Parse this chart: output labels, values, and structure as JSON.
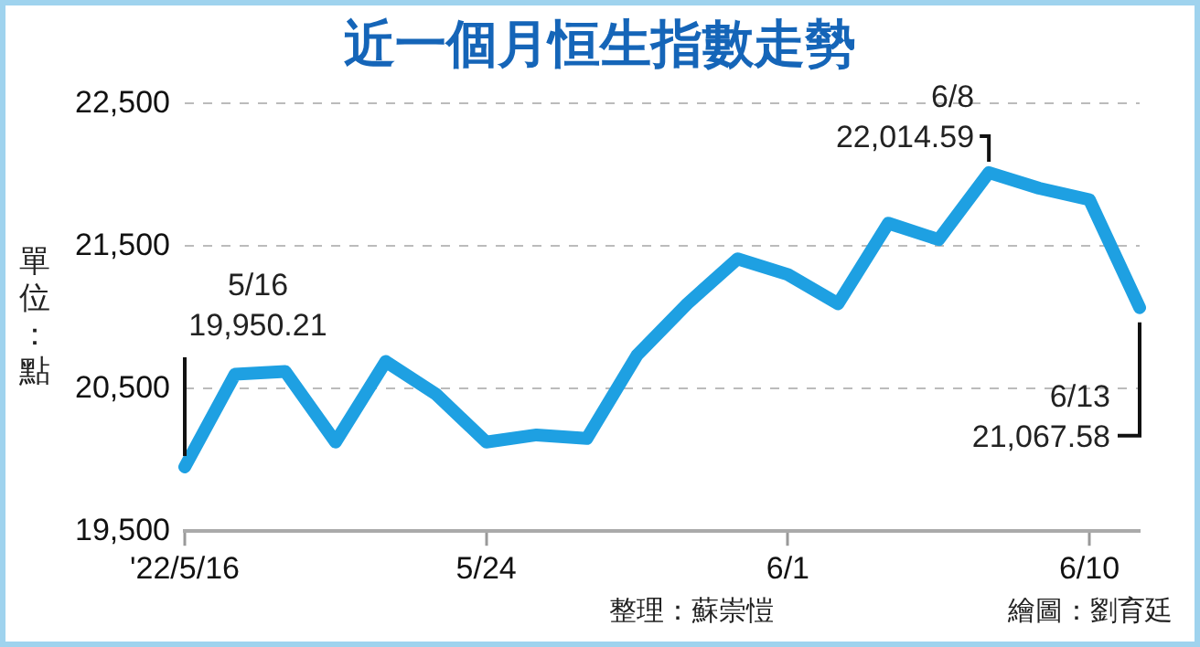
{
  "chart_data": {
    "type": "line",
    "title": "近一個月恒生指數走勢",
    "ylabel": "單位：點",
    "categories": [
      "'22/5/16",
      null,
      null,
      null,
      null,
      null,
      "5/24",
      null,
      null,
      null,
      null,
      null,
      "6/1",
      null,
      null,
      null,
      null,
      null,
      "6/10",
      null
    ],
    "series": [
      {
        "color": "#1ea0e2",
        "values": [
          19950.21,
          20600,
          20620,
          20125,
          20690,
          20460,
          20125,
          20175,
          20150,
          20735,
          21095,
          21410,
          21300,
          21095,
          21660,
          21545,
          22014.59,
          21905,
          21825,
          21067.58
        ]
      }
    ],
    "ylim": [
      19500,
      22500
    ],
    "yticks": [
      {
        "value": 19500,
        "label": "19,500"
      },
      {
        "value": 20500,
        "label": "20,500"
      },
      {
        "value": 21500,
        "label": "21,500"
      },
      {
        "value": 22500,
        "label": "22,500"
      }
    ],
    "grid": "y",
    "legend": false,
    "marker": "none",
    "line_style": "solid",
    "annotations": [
      "5/16\n19,950.21",
      "6/8\n22,014.59",
      "6/13\n21,067.58",
      "整理：蘇崇愷",
      "繪圖：劉育廷"
    ]
  }
}
